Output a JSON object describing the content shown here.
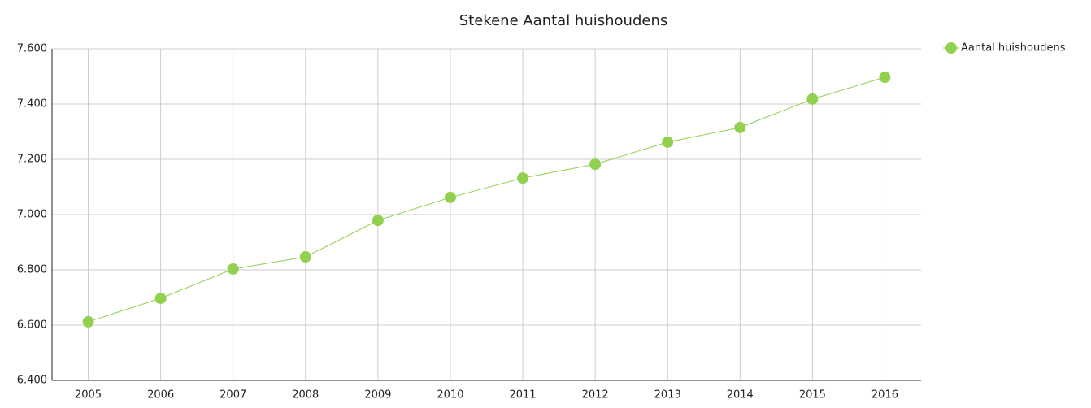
{
  "chart_data": {
    "type": "line",
    "title": "Stekene  Aantal huishoudens",
    "categories": [
      "2005",
      "2006",
      "2007",
      "2008",
      "2009",
      "2010",
      "2011",
      "2012",
      "2013",
      "2014",
      "2015",
      "2016"
    ],
    "series": [
      {
        "name": "Aantal huishoudens",
        "color": "#92d050",
        "values": [
          6612,
          6697,
          6803,
          6847,
          6979,
          7062,
          7132,
          7182,
          7262,
          7315,
          7418,
          7497
        ]
      }
    ],
    "ylim": [
      6400,
      7600
    ],
    "yticks": [
      {
        "value": 6400,
        "label": "6.400"
      },
      {
        "value": 6600,
        "label": "6.600"
      },
      {
        "value": 6800,
        "label": "6.800"
      },
      {
        "value": 7000,
        "label": "7.000"
      },
      {
        "value": 7200,
        "label": "7.200"
      },
      {
        "value": 7400,
        "label": "7.400"
      },
      {
        "value": 7600,
        "label": "7.600"
      }
    ],
    "grid": true,
    "legend": "top-right"
  }
}
